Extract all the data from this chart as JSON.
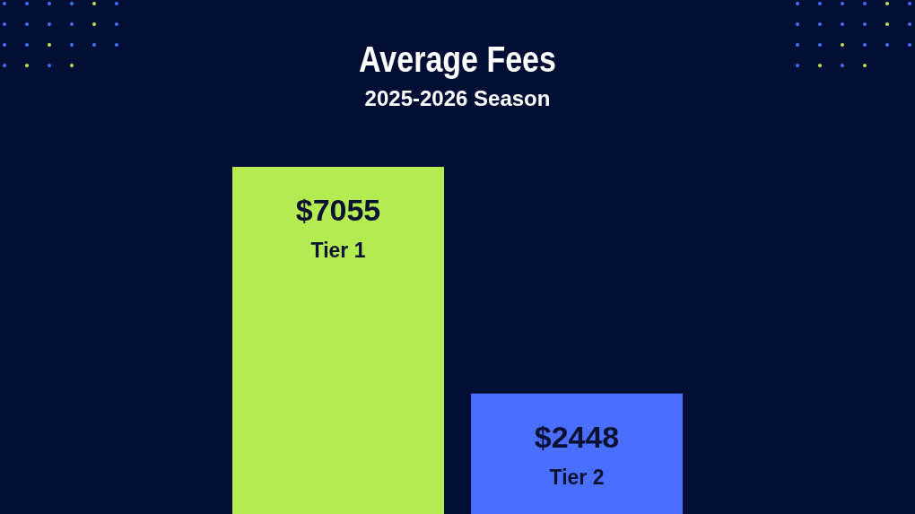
{
  "chart_data": {
    "type": "bar",
    "title": "Average Fees",
    "subtitle": "2025-2026 Season",
    "categories": [
      "Tier 1",
      "Tier 2"
    ],
    "values": [
      7055,
      2448
    ],
    "colors": [
      "#b3eb50",
      "#4a6fff"
    ],
    "value_labels": [
      "$7055",
      "$2448"
    ]
  }
}
